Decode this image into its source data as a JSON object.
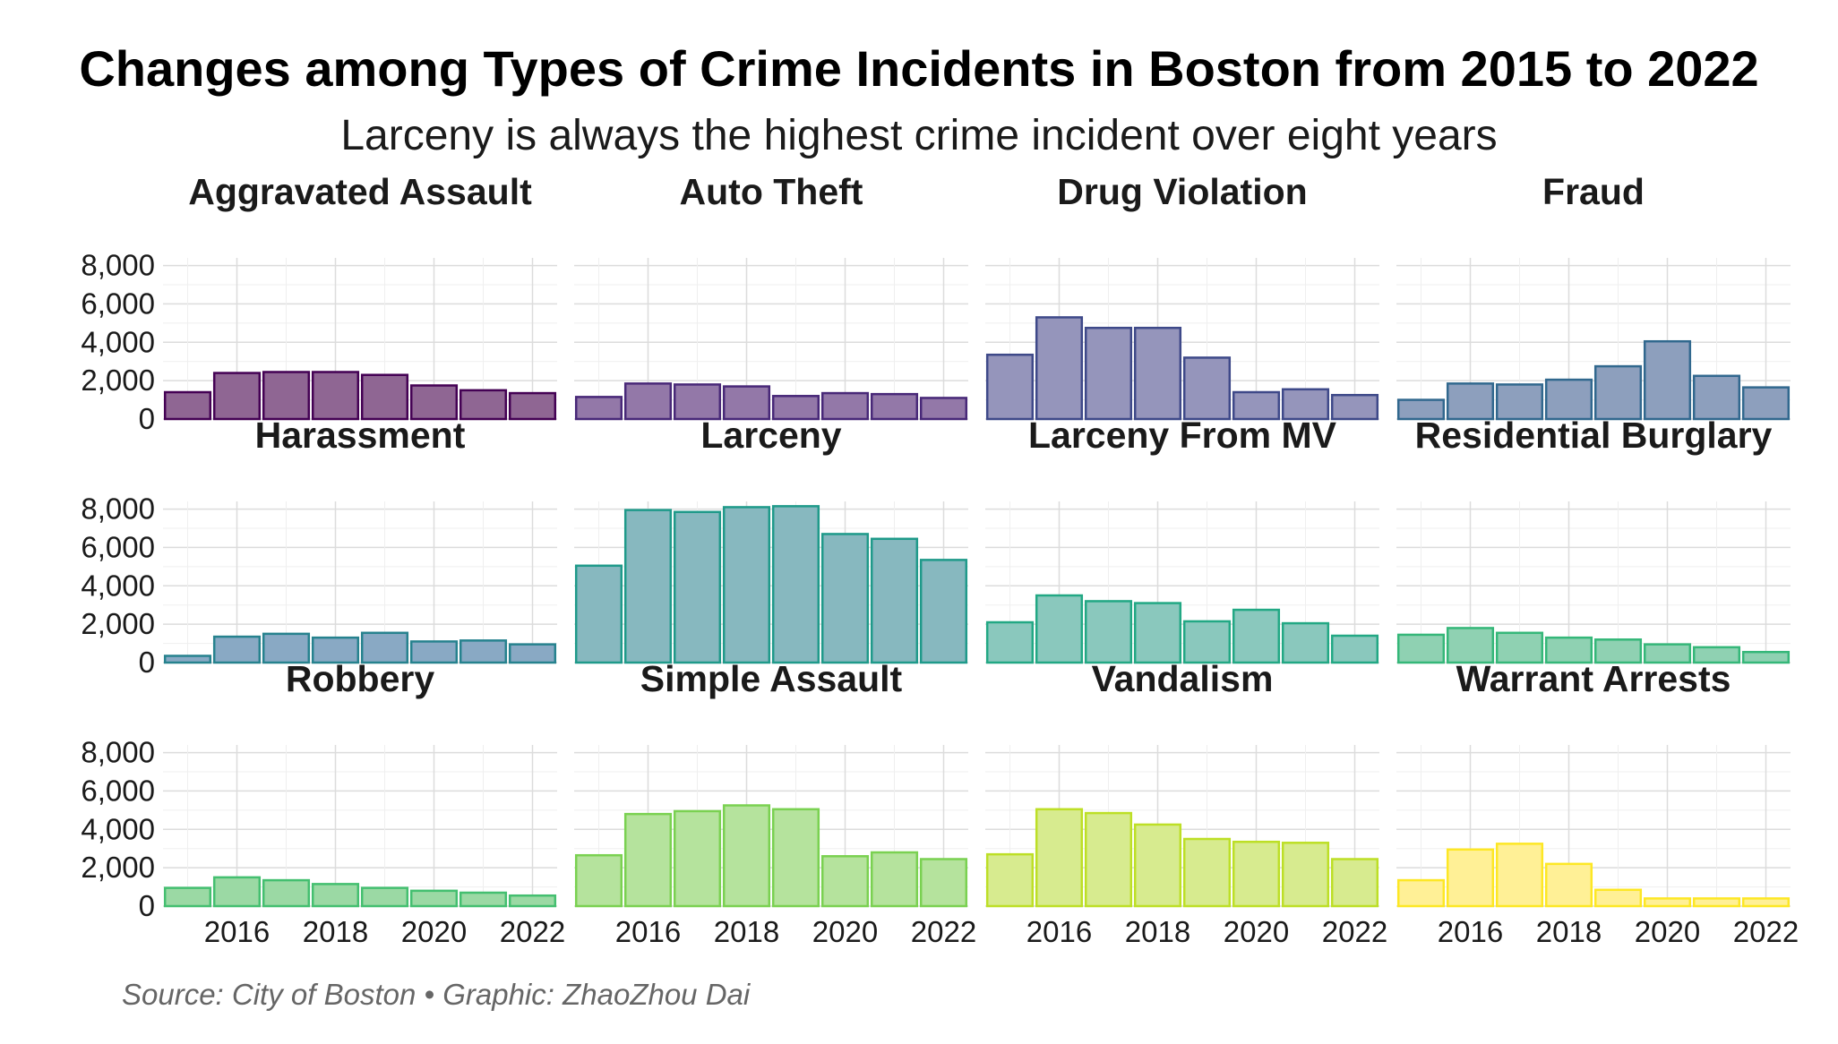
{
  "chart_data": {
    "type": "bar",
    "title": "Changes among Types of Crime Incidents in Boston from 2015 to 2022",
    "subtitle": "Larceny is always the highest crime incident over eight years",
    "caption": "Source: City of Boston • Graphic: ZhaoZhou Dai",
    "x": [
      2015,
      2016,
      2017,
      2018,
      2019,
      2020,
      2021,
      2022
    ],
    "x_tick_labels": [
      "2016",
      "2018",
      "2020",
      "2022"
    ],
    "y_ticks": [
      0,
      2000,
      4000,
      6000,
      8000
    ],
    "y_tick_labels": [
      "0",
      "2,000",
      "4,000",
      "6,000",
      "8,000"
    ],
    "ylim": [
      0,
      8400
    ],
    "grid": true,
    "legend": "none",
    "layout": "facet grid, 3 rows x 4 columns, shared axes",
    "series": [
      {
        "name": "Aggravated Assault",
        "fill": "#8f6693",
        "stroke": "#440154",
        "values": [
          1400,
          2400,
          2450,
          2450,
          2300,
          1750,
          1500,
          1350
        ]
      },
      {
        "name": "Auto Theft",
        "fill": "#9378a8",
        "stroke": "#482878",
        "values": [
          1150,
          1850,
          1800,
          1700,
          1200,
          1350,
          1300,
          1100
        ]
      },
      {
        "name": "Drug Violation",
        "fill": "#9595bb",
        "stroke": "#3e4989",
        "values": [
          3350,
          5300,
          4750,
          4750,
          3200,
          1400,
          1550,
          1250
        ]
      },
      {
        "name": "Fraud",
        "fill": "#8d9fbd",
        "stroke": "#31688e",
        "values": [
          1000,
          1850,
          1800,
          2050,
          2750,
          4050,
          2250,
          1650
        ]
      },
      {
        "name": "Harassment",
        "fill": "#89a9c4",
        "stroke": "#26828e",
        "values": [
          350,
          1350,
          1500,
          1300,
          1550,
          1100,
          1150,
          950
        ]
      },
      {
        "name": "Larceny",
        "fill": "#87b8bf",
        "stroke": "#1f9a8a",
        "values": [
          5050,
          7950,
          7850,
          8100,
          8150,
          6700,
          6450,
          5350
        ]
      },
      {
        "name": "Larceny From MV",
        "fill": "#8ac8bd",
        "stroke": "#22a884",
        "values": [
          2100,
          3500,
          3200,
          3100,
          2150,
          2750,
          2050,
          1400
        ]
      },
      {
        "name": "Residential Burglary",
        "fill": "#8fd1b2",
        "stroke": "#35b779",
        "values": [
          1450,
          1800,
          1550,
          1300,
          1200,
          950,
          800,
          550
        ]
      },
      {
        "name": "Robbery",
        "fill": "#9bd9a4",
        "stroke": "#44bf70",
        "values": [
          950,
          1500,
          1350,
          1150,
          950,
          800,
          700,
          550
        ]
      },
      {
        "name": "Simple Assault",
        "fill": "#b5e39d",
        "stroke": "#7ad151",
        "values": [
          2650,
          4800,
          4950,
          5250,
          5050,
          2600,
          2800,
          2450
        ]
      },
      {
        "name": "Vandalism",
        "fill": "#d7eb8f",
        "stroke": "#bddf26",
        "values": [
          2700,
          5050,
          4850,
          4250,
          3500,
          3350,
          3300,
          2450
        ]
      },
      {
        "name": "Warrant Arrests",
        "fill": "#fff096",
        "stroke": "#fde725",
        "values": [
          1350,
          2950,
          3250,
          2200,
          850,
          400,
          400,
          400
        ]
      }
    ]
  }
}
